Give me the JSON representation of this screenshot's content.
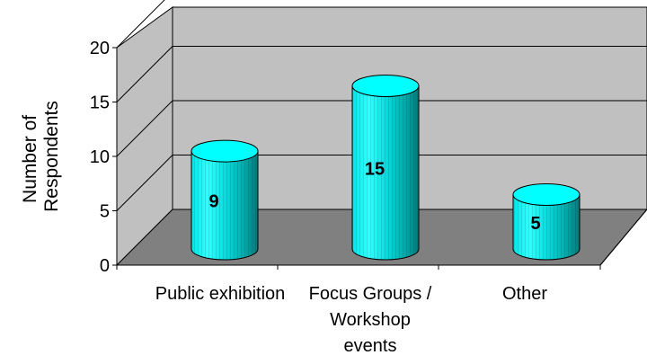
{
  "chart_data": {
    "type": "bar",
    "style": "3d-cylinder",
    "categories": [
      "Public exhibition",
      "Focus Groups / Workshop events",
      "Other"
    ],
    "category_lines": [
      [
        "Public exhibition"
      ],
      [
        "Focus Groups /",
        "Workshop",
        "events"
      ],
      [
        "Other"
      ]
    ],
    "values": [
      9,
      15,
      5
    ],
    "data_labels": [
      "9",
      "15",
      "5"
    ],
    "title": "",
    "xlabel": "",
    "ylabel": "Number of Respondents",
    "ylabel_lines": [
      "Number of",
      "Respondents"
    ],
    "ylim": [
      0,
      20
    ],
    "yticks": [
      0,
      5,
      10,
      15,
      20
    ],
    "grid": true,
    "legend": "none",
    "colors": {
      "bar_face": "#00FFFF",
      "bar_shade": "#009999",
      "wall": "#C0C0C0",
      "floor": "#808080",
      "grid": "#000000"
    }
  }
}
